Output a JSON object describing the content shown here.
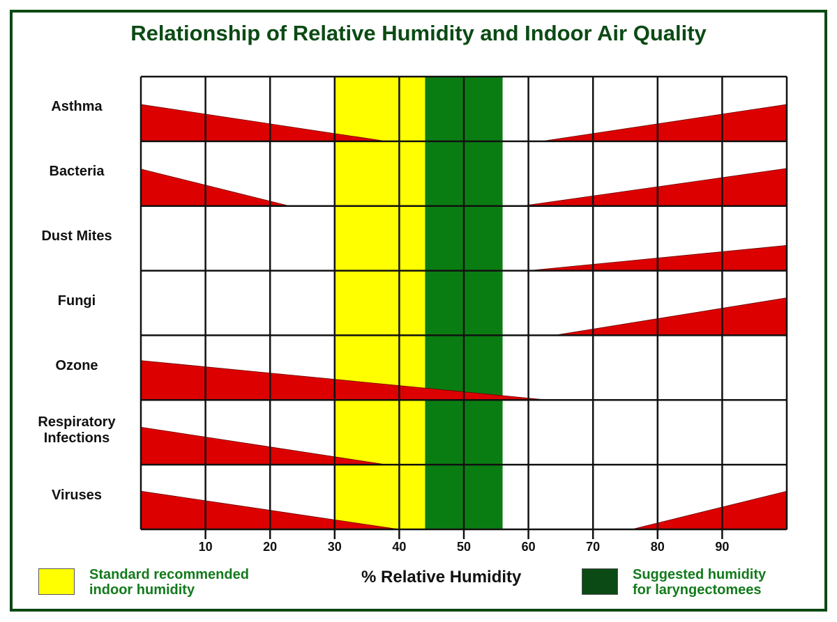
{
  "chart_data": {
    "type": "area",
    "title": "Relationship of Relative Humidity and Indoor Air Quality",
    "xlabel": "% Relative Humidity",
    "ylabel": "",
    "xlim": [
      0,
      100
    ],
    "x_ticks": [
      "10",
      "20",
      "30",
      "40",
      "50",
      "60",
      "70",
      "80",
      "90"
    ],
    "grid": true,
    "categories": [
      "Asthma",
      "Bacteria",
      "Dust Mites",
      "Fungi",
      "Ozone",
      "Respiratory Infections",
      "Viruses"
    ],
    "category_labels": [
      [
        "Asthma"
      ],
      [
        "Bacteria"
      ],
      [
        "Dust Mites"
      ],
      [
        "Fungi"
      ],
      [
        "Ozone"
      ],
      [
        "Respiratory",
        "Infections"
      ],
      [
        "Viruses"
      ]
    ],
    "wedges_note_level_units": "relative effect level (0-1 of row)",
    "series": [
      {
        "category": "Asthma",
        "wedges": [
          {
            "from": 0,
            "to": 38,
            "level": 0.57
          },
          {
            "from": 62,
            "to": 100,
            "level": 0.57
          }
        ]
      },
      {
        "category": "Bacteria",
        "wedges": [
          {
            "from": 0,
            "to": 23,
            "level": 0.57
          },
          {
            "from": 59,
            "to": 100,
            "level": 0.58
          }
        ]
      },
      {
        "category": "Dust Mites",
        "wedges": [
          {
            "from": 60,
            "to": 100,
            "level": 0.39
          }
        ]
      },
      {
        "category": "Fungi",
        "wedges": [
          {
            "from": 64,
            "to": 100,
            "level": 0.58
          }
        ]
      },
      {
        "category": "Ozone",
        "wedges": [
          {
            "from": 0,
            "to": 63,
            "level": 0.61
          }
        ]
      },
      {
        "category": "Respiratory Infections",
        "wedges": [
          {
            "from": 0,
            "to": 38,
            "level": 0.58
          }
        ]
      },
      {
        "category": "Viruses",
        "wedges": [
          {
            "from": 0,
            "to": 40,
            "level": 0.59
          },
          {
            "from": 76,
            "to": 100,
            "level": 0.59
          }
        ]
      }
    ],
    "bands": [
      {
        "name": "Standard recommended indoor humidity",
        "from": 30,
        "to": 44,
        "color": "#ffff00"
      },
      {
        "name": "Suggested humidity for laryngectomees",
        "from": 44,
        "to": 56,
        "color": "#0a7d12"
      }
    ],
    "legend": {
      "placement": "bottom",
      "items": [
        {
          "lines": [
            "Standard recommended",
            "indoor humidity"
          ],
          "color": "#ffff00"
        },
        {
          "lines": [
            "Suggested humidity",
            "for laryngectomees"
          ],
          "color": "#0b4a14"
        }
      ]
    },
    "colors": {
      "wedge": "#dd0000",
      "frame": "#0b4a14",
      "legend_text": "#137a1c"
    }
  }
}
